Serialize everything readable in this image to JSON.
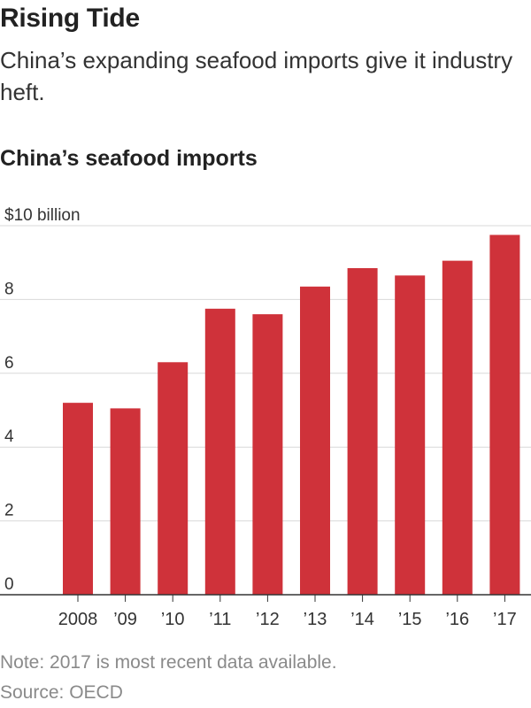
{
  "header": {
    "title": "Rising Tide",
    "subtitle": "China’s expanding seafood imports give it industry heft."
  },
  "footer": {
    "note": "Note: 2017 is most recent data available.",
    "source": "Source: OECD"
  },
  "colors": {
    "bar": "#cf323a",
    "grid": "#d9d9d9",
    "axis": "#333333"
  },
  "chart_data": {
    "type": "bar",
    "title": "China’s seafood imports",
    "ylabel": "",
    "xlabel": "",
    "categories": [
      "2008",
      "’09",
      "’10",
      "’11",
      "’12",
      "’13",
      "’14",
      "’15",
      "’16",
      "’17"
    ],
    "values": [
      5.2,
      5.05,
      6.3,
      7.75,
      7.6,
      8.35,
      8.85,
      8.65,
      9.05,
      9.75
    ],
    "ylim": [
      0,
      10
    ],
    "yticks": [
      0,
      2,
      4,
      6,
      8,
      10
    ],
    "ytick_labels": [
      "0",
      "2",
      "4",
      "6",
      "8",
      "$10 billion"
    ],
    "grid": true,
    "legend": "none"
  }
}
